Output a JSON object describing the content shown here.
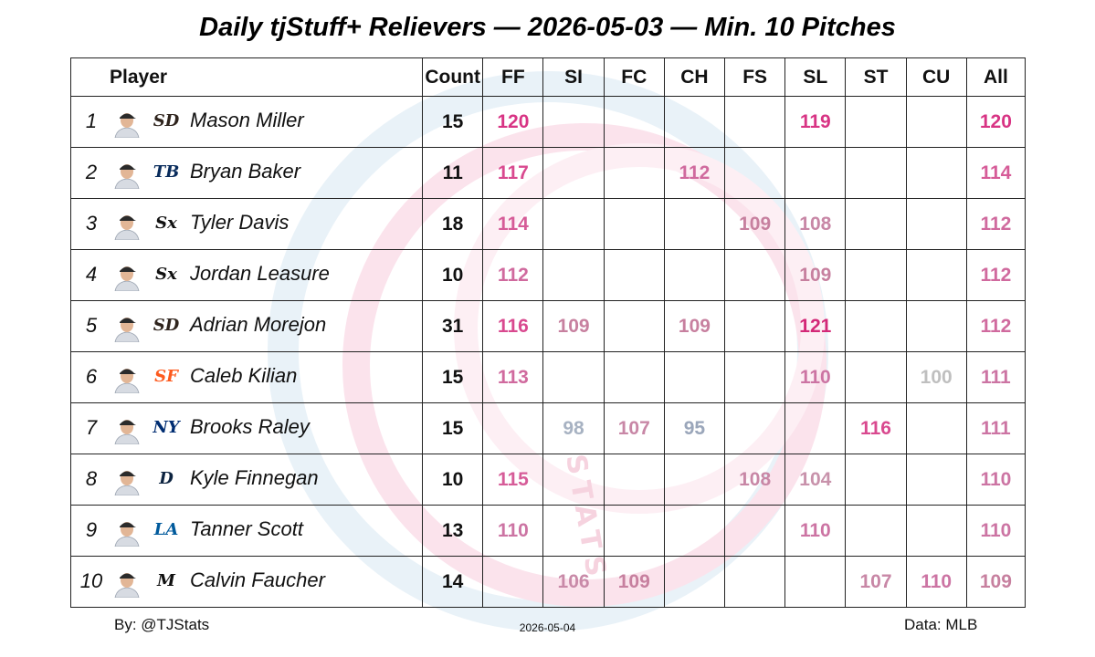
{
  "title": "Daily tjStuff+ Relievers — 2026-05-03 — Min. 10 Pitches",
  "headers": {
    "player": "Player",
    "count": "Count",
    "pitches": [
      "FF",
      "SI",
      "FC",
      "CH",
      "FS",
      "SL",
      "ST",
      "CU",
      "All"
    ]
  },
  "rows": [
    {
      "rank": "1",
      "name": "Mason Miller",
      "team": "SD",
      "count": "15",
      "values": [
        "120",
        "",
        "",
        "",
        "",
        "119",
        "",
        "",
        "120"
      ]
    },
    {
      "rank": "2",
      "name": "Bryan Baker",
      "team": "TB",
      "count": "11",
      "values": [
        "117",
        "",
        "",
        "112",
        "",
        "",
        "",
        "",
        "114"
      ]
    },
    {
      "rank": "3",
      "name": "Tyler Davis",
      "team": "CWS",
      "count": "18",
      "values": [
        "114",
        "",
        "",
        "",
        "109",
        "108",
        "",
        "",
        "112"
      ]
    },
    {
      "rank": "4",
      "name": "Jordan Leasure",
      "team": "CWS",
      "count": "10",
      "values": [
        "112",
        "",
        "",
        "",
        "",
        "109",
        "",
        "",
        "112"
      ]
    },
    {
      "rank": "5",
      "name": "Adrian Morejon",
      "team": "SD",
      "count": "31",
      "values": [
        "116",
        "109",
        "",
        "109",
        "",
        "121",
        "",
        "",
        "112"
      ]
    },
    {
      "rank": "6",
      "name": "Caleb Kilian",
      "team": "SF",
      "count": "15",
      "values": [
        "113",
        "",
        "",
        "",
        "",
        "110",
        "",
        "100",
        "111"
      ]
    },
    {
      "rank": "7",
      "name": "Brooks Raley",
      "team": "NYM",
      "count": "15",
      "values": [
        "",
        "98",
        "107",
        "95",
        "",
        "",
        "116",
        "",
        "111"
      ]
    },
    {
      "rank": "8",
      "name": "Kyle Finnegan",
      "team": "DET",
      "count": "10",
      "values": [
        "115",
        "",
        "",
        "",
        "108",
        "104",
        "",
        "",
        "110"
      ]
    },
    {
      "rank": "9",
      "name": "Tanner Scott",
      "team": "LAD",
      "count": "13",
      "values": [
        "110",
        "",
        "",
        "",
        "",
        "110",
        "",
        "",
        "110"
      ]
    },
    {
      "rank": "10",
      "name": "Calvin Faucher",
      "team": "MIA",
      "count": "14",
      "values": [
        "",
        "106",
        "109",
        "",
        "",
        "",
        "107",
        "110",
        "109"
      ]
    }
  ],
  "team_logos": {
    "SD": {
      "text": "SD",
      "color": "#2f241d"
    },
    "TB": {
      "text": "TB",
      "color": "#092c5c"
    },
    "CWS": {
      "text": "Sx",
      "color": "#111111"
    },
    "SF": {
      "text": "SF",
      "color": "#fd5a1e"
    },
    "NYM": {
      "text": "NY",
      "color": "#002d72"
    },
    "DET": {
      "text": "D",
      "color": "#0c2340"
    },
    "LAD": {
      "text": "LA",
      "color": "#005a9c"
    },
    "MIA": {
      "text": "M",
      "color": "#111111"
    }
  },
  "value_colors": {
    "121": "#d32877",
    "120": "#d83484",
    "119": "#d83484",
    "117": "#d9498f",
    "116": "#d9498f",
    "115": "#d65c98",
    "114": "#d65c98",
    "113": "#d06a9e",
    "112": "#d06a9e",
    "111": "#cc74a3",
    "110": "#cc74a3",
    "109": "#c7809f",
    "108": "#c887a6",
    "107": "#c887a6",
    "106": "#c98aa8",
    "104": "#c892ab",
    "100": "#bfbfbf",
    "98": "#a7b2c2",
    "95": "#9aa6ba"
  },
  "footer": {
    "left": "By: @TJStats",
    "center": "2026-05-04",
    "right": "Data: MLB"
  },
  "chart_data": {
    "type": "table",
    "title": "Daily tjStuff+ Relievers — 2026-05-03 — Min. 10 Pitches",
    "columns": [
      "Player",
      "Count",
      "FF",
      "SI",
      "FC",
      "CH",
      "FS",
      "SL",
      "ST",
      "CU",
      "All"
    ],
    "rows": [
      [
        "Mason Miller",
        15,
        120,
        null,
        null,
        null,
        null,
        119,
        null,
        null,
        120
      ],
      [
        "Bryan Baker",
        11,
        117,
        null,
        null,
        112,
        null,
        null,
        null,
        null,
        114
      ],
      [
        "Tyler Davis",
        18,
        114,
        null,
        null,
        null,
        109,
        108,
        null,
        null,
        112
      ],
      [
        "Jordan Leasure",
        10,
        112,
        null,
        null,
        null,
        null,
        109,
        null,
        null,
        112
      ],
      [
        "Adrian Morejon",
        31,
        116,
        109,
        null,
        109,
        null,
        121,
        null,
        null,
        112
      ],
      [
        "Caleb Kilian",
        15,
        113,
        null,
        null,
        null,
        null,
        110,
        null,
        100,
        111
      ],
      [
        "Brooks Raley",
        15,
        null,
        98,
        107,
        95,
        null,
        null,
        116,
        null,
        111
      ],
      [
        "Kyle Finnegan",
        10,
        115,
        null,
        null,
        null,
        108,
        104,
        null,
        null,
        110
      ],
      [
        "Tanner Scott",
        13,
        110,
        null,
        null,
        null,
        null,
        110,
        null,
        null,
        110
      ],
      [
        "Calvin Faucher",
        14,
        null,
        106,
        109,
        null,
        null,
        null,
        107,
        110,
        109
      ]
    ]
  }
}
